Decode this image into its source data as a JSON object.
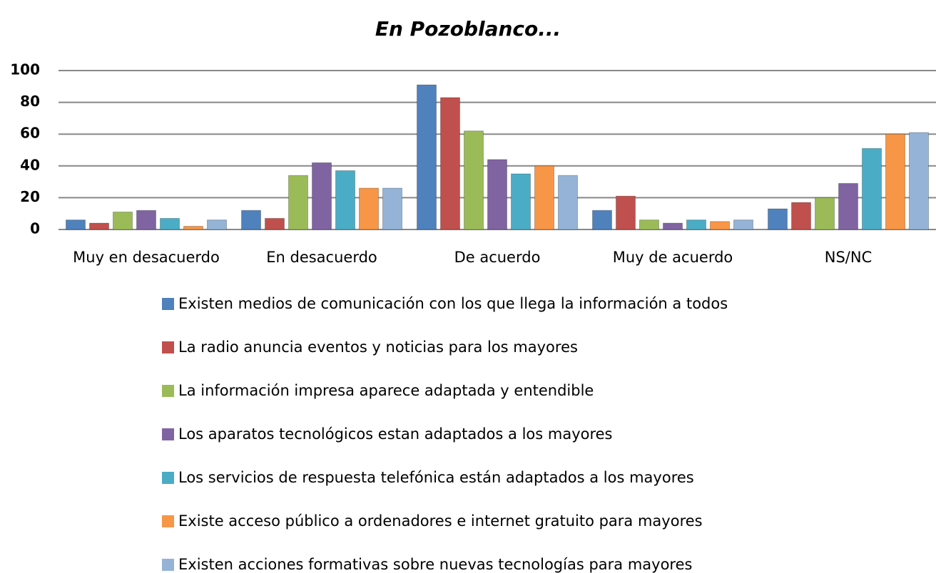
{
  "chart_data": {
    "type": "bar",
    "title": "En Pozoblanco...",
    "categories": [
      "Muy en desacuerdo",
      "En desacuerdo",
      "De acuerdo",
      "Muy de acuerdo",
      "NS/NC"
    ],
    "series": [
      {
        "name": "Existen medios de comunicación con los que llega la información a todos",
        "color": "#4f81bd",
        "values": [
          6,
          12,
          91,
          12,
          13
        ]
      },
      {
        "name": "La radio anuncia eventos y noticias para los mayores",
        "color": "#c0504d",
        "values": [
          4,
          7,
          83,
          21,
          17
        ]
      },
      {
        "name": "La información impresa aparece adaptada y entendible",
        "color": "#9bbb59",
        "values": [
          11,
          34,
          62,
          6,
          20
        ]
      },
      {
        "name": "Los aparatos tecnológicos estan adaptados a los mayores",
        "color": "#8064a2",
        "values": [
          12,
          42,
          44,
          4,
          29
        ]
      },
      {
        "name": "Los servicios de respuesta telefónica están adaptados a los mayores",
        "color": "#4bacc6",
        "values": [
          7,
          37,
          35,
          6,
          51
        ]
      },
      {
        "name": "Existe acceso público a ordenadores e internet gratuito para mayores",
        "color": "#f79646",
        "values": [
          2,
          26,
          40,
          5,
          60
        ]
      },
      {
        "name": "Existen acciones formativas sobre nuevas tecnologías para mayores",
        "color": "#95b3d7",
        "values": [
          6,
          26,
          34,
          6,
          61
        ]
      }
    ],
    "ylim": [
      0,
      100
    ],
    "yticks": [
      0,
      20,
      40,
      60,
      80,
      100
    ],
    "grid": true,
    "legend": "bottom"
  }
}
